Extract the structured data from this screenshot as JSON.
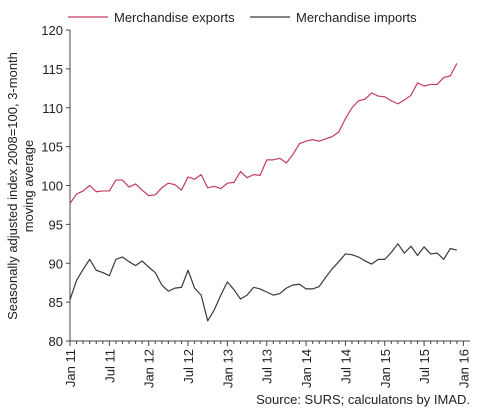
{
  "chart_data": {
    "type": "line",
    "title": "",
    "xlabel": "",
    "ylabel": "Seasonally adjusted index 2008=100, 3-month moving average",
    "ylim": [
      80,
      120
    ],
    "yticks": [
      80,
      85,
      90,
      95,
      100,
      105,
      110,
      115,
      120
    ],
    "xlim": [
      0,
      61
    ],
    "xticks": [
      {
        "label": "Jan 11",
        "x": 0
      },
      {
        "label": "Jul 11",
        "x": 6
      },
      {
        "label": "Jan 12",
        "x": 12
      },
      {
        "label": "Jul 12",
        "x": 18
      },
      {
        "label": "Jan 13",
        "x": 24
      },
      {
        "label": "Jul 13",
        "x": 30
      },
      {
        "label": "Jan 14",
        "x": 36
      },
      {
        "label": "Jul 14",
        "x": 42
      },
      {
        "label": "Jan 15",
        "x": 48
      },
      {
        "label": "Jul 15",
        "x": 54
      },
      {
        "label": "Jan 16",
        "x": 60
      }
    ],
    "grid": false,
    "legend_position": "top",
    "source": "Source: SURS; calculatons by IMAD.",
    "series": [
      {
        "name": "Merchandise exports",
        "color": "#c43c5c",
        "values": [
          97.7,
          98.9,
          99.3,
          100.0,
          99.2,
          99.3,
          99.3,
          100.7,
          100.7,
          99.8,
          100.2,
          99.4,
          98.7,
          98.8,
          99.7,
          100.3,
          100.1,
          99.4,
          101.1,
          100.8,
          101.4,
          99.7,
          99.9,
          99.6,
          100.3,
          100.4,
          101.8,
          101.0,
          101.4,
          101.3,
          103.3,
          103.3,
          103.5,
          102.9,
          104.0,
          105.4,
          105.7,
          105.9,
          105.7,
          106.0,
          106.3,
          106.9,
          108.6,
          110.0,
          110.9,
          111.1,
          111.9,
          111.5,
          111.4,
          110.9,
          110.5,
          111.0,
          111.6,
          113.2,
          112.8,
          113.0,
          113.0,
          113.9,
          114.1,
          115.7
        ]
      },
      {
        "name": "Merchandise imports",
        "color": "#3a3a3a",
        "values": [
          85.3,
          87.8,
          89.2,
          90.5,
          89.1,
          88.8,
          88.4,
          90.5,
          90.8,
          90.2,
          89.7,
          90.3,
          89.5,
          88.8,
          87.2,
          86.4,
          86.8,
          86.9,
          89.1,
          86.8,
          85.9,
          82.6,
          84.0,
          85.9,
          87.6,
          86.6,
          85.4,
          85.9,
          86.9,
          86.7,
          86.3,
          85.9,
          86.1,
          86.8,
          87.2,
          87.3,
          86.7,
          86.7,
          87.0,
          88.2,
          89.3,
          90.2,
          91.2,
          91.1,
          90.8,
          90.3,
          89.9,
          90.5,
          90.5,
          91.4,
          92.5,
          91.3,
          92.2,
          91.0,
          92.1,
          91.2,
          91.3,
          90.5,
          91.9,
          91.7
        ]
      }
    ]
  }
}
